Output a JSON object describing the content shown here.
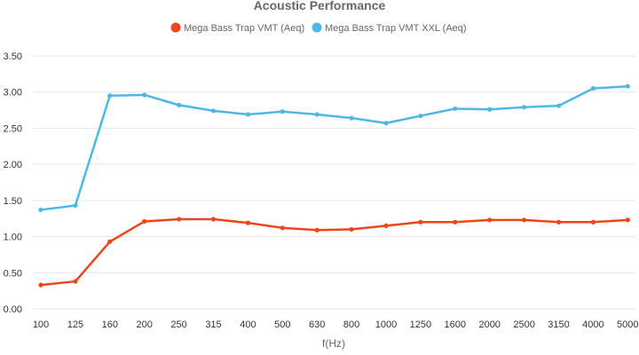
{
  "chart_data": {
    "type": "line",
    "title": "Acoustic Performance",
    "xlabel": "f(Hz)",
    "ylabel": "",
    "categories": [
      "100",
      "125",
      "160",
      "200",
      "250",
      "315",
      "400",
      "500",
      "630",
      "800",
      "1000",
      "1250",
      "1600",
      "2000",
      "2500",
      "3150",
      "4000",
      "5000"
    ],
    "ylim": [
      0,
      3.5
    ],
    "yticks": [
      "0.00",
      "0.50",
      "1.00",
      "1.50",
      "2.00",
      "2.50",
      "3.00",
      "3.50"
    ],
    "grid": true,
    "legend_position": "top",
    "series": [
      {
        "name": "Mega Bass Trap VMT (Aeq)",
        "color": "#f0441a",
        "values": [
          0.33,
          0.38,
          0.93,
          1.21,
          1.24,
          1.24,
          1.19,
          1.12,
          1.09,
          1.1,
          1.15,
          1.2,
          1.2,
          1.23,
          1.23,
          1.2,
          1.2,
          1.23
        ]
      },
      {
        "name": "Mega Bass Trap VMT XXL (Aeq)",
        "color": "#4db7e8",
        "values": [
          1.37,
          1.43,
          2.95,
          2.96,
          2.82,
          2.74,
          2.69,
          2.73,
          2.69,
          2.64,
          2.57,
          2.67,
          2.77,
          2.76,
          2.79,
          2.81,
          3.05,
          3.08
        ]
      }
    ]
  }
}
